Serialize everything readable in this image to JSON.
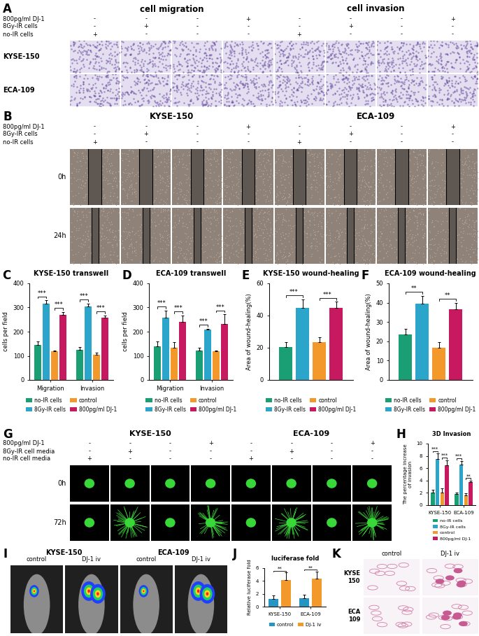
{
  "image_panels": [
    {
      "label": "A",
      "headers": [
        "cell migration",
        "cell invasion"
      ],
      "conditions": [
        {
          "name": "800pg/ml DJ-1",
          "signs": [
            "-",
            "-",
            "-",
            "+",
            "-",
            "-",
            "-",
            "+"
          ]
        },
        {
          "name": "8Gy-IR cells",
          "signs": [
            "-",
            "+",
            "-",
            "-",
            "-",
            "+",
            "-",
            "-"
          ]
        },
        {
          "name": "no-IR cells",
          "signs": [
            "+",
            "-",
            "-",
            "-",
            "+",
            "-",
            "-",
            "-"
          ]
        }
      ],
      "rows": [
        "KYSE-150",
        "ECA-109"
      ]
    },
    {
      "label": "B",
      "headers": [
        "KYSE-150",
        "ECA-109"
      ],
      "conditions": [
        {
          "name": "800pg/ml DJ-1",
          "signs": [
            "-",
            "-",
            "-",
            "+",
            "-",
            "-",
            "-",
            "+"
          ]
        },
        {
          "name": "8Gy-IR cells",
          "signs": [
            "-",
            "+",
            "-",
            "-",
            "-",
            "+",
            "-",
            "-"
          ]
        },
        {
          "name": "no-IR cells",
          "signs": [
            "+",
            "-",
            "-",
            "-",
            "+",
            "-",
            "-",
            "-"
          ]
        }
      ],
      "rows": [
        "0h",
        "24h"
      ]
    },
    {
      "label": "G",
      "headers": [
        "KYSE-150",
        "ECA-109"
      ],
      "conditions": [
        {
          "name": "800pg/ml DJ-1",
          "signs": [
            "-",
            "-",
            "-",
            "+",
            "-",
            "-",
            "-",
            "+"
          ]
        },
        {
          "name": "8Gy-IR cell media",
          "signs": [
            "-",
            "+",
            "-",
            "-",
            "-",
            "+",
            "-",
            "-"
          ]
        },
        {
          "name": "no-IR cell media",
          "signs": [
            "+",
            "-",
            "-",
            "-",
            "+",
            "-",
            "-",
            "-"
          ]
        }
      ],
      "rows": [
        "0h",
        "72h"
      ]
    },
    {
      "label": "I",
      "headers": [
        "KYSE-150",
        "ECA-109"
      ],
      "columns": [
        "control",
        "DJ-1 iv",
        "control",
        "DJ-1 iv"
      ]
    },
    {
      "label": "K",
      "columns": [
        "control",
        "DJ-1 iv"
      ],
      "rows": [
        "KYSE\n150",
        "ECA\n109"
      ]
    }
  ],
  "chart_data": [
    {
      "type": "bar",
      "label": "C",
      "title": "KYSE-150 transwell",
      "y_label": "cells per field",
      "categories": [
        "Migration",
        "Invasion"
      ],
      "series": [
        {
          "name": "no-IR cells",
          "color": "#1a9e73",
          "values": [
            145,
            125
          ],
          "errors": [
            15,
            12
          ]
        },
        {
          "name": "8Gy-IR cells",
          "color": "#2ba5c9",
          "values": [
            315,
            305
          ],
          "errors": [
            15,
            12
          ]
        },
        {
          "name": "control",
          "color": "#f3982a",
          "values": [
            118,
            105
          ],
          "errors": [
            4,
            8
          ]
        },
        {
          "name": "800pg/ml DJ-1",
          "color": "#c7195f",
          "values": [
            270,
            258
          ],
          "errors": [
            12,
            10
          ]
        }
      ],
      "ylim": [
        0,
        400
      ],
      "yticks": [
        0,
        100,
        200,
        300,
        400
      ],
      "legend": "below",
      "significance": [
        {
          "category": 0,
          "series": [
            0,
            1
          ],
          "text": "***"
        },
        {
          "category": 0,
          "series": [
            2,
            3
          ],
          "text": "***"
        },
        {
          "category": 1,
          "series": [
            0,
            1
          ],
          "text": "***"
        },
        {
          "category": 1,
          "series": [
            2,
            3
          ],
          "text": "***"
        }
      ]
    },
    {
      "type": "bar",
      "label": "D",
      "title": "ECA-109 transwell",
      "y_label": "cells per field",
      "categories": [
        "Migration",
        "Invasion"
      ],
      "series": [
        {
          "name": "no-IR cells",
          "color": "#1a9e73",
          "values": [
            138,
            122
          ],
          "errors": [
            20,
            10
          ]
        },
        {
          "name": "8Gy-IR cells",
          "color": "#2ba5c9",
          "values": [
            258,
            208
          ],
          "errors": [
            30,
            5
          ]
        },
        {
          "name": "control",
          "color": "#f3982a",
          "values": [
            132,
            118
          ],
          "errors": [
            25,
            5
          ]
        },
        {
          "name": "800pg/ml DJ-1",
          "color": "#c7195f",
          "values": [
            242,
            232
          ],
          "errors": [
            25,
            40
          ]
        }
      ],
      "ylim": [
        0,
        400
      ],
      "yticks": [
        0,
        100,
        200,
        300,
        400
      ],
      "legend": "below",
      "significance": [
        {
          "category": 0,
          "series": [
            0,
            1
          ],
          "text": "***"
        },
        {
          "category": 0,
          "series": [
            2,
            3
          ],
          "text": "***"
        },
        {
          "category": 1,
          "series": [
            0,
            1
          ],
          "text": "***"
        },
        {
          "category": 1,
          "series": [
            2,
            3
          ],
          "text": "***"
        }
      ]
    },
    {
      "type": "bar",
      "label": "E",
      "title": "KYSE-150 wound-healing",
      "y_label": "Area of wound-healing(%)",
      "categories": [
        null
      ],
      "series": [
        {
          "name": "no-IR cells",
          "color": "#1a9e73",
          "values": [
            20.5
          ],
          "errors": [
            3
          ]
        },
        {
          "name": "8Gy-IR cells",
          "color": "#2ba5c9",
          "values": [
            45
          ],
          "errors": [
            5
          ]
        },
        {
          "name": "control",
          "color": "#f3982a",
          "values": [
            23.5
          ],
          "errors": [
            3
          ]
        },
        {
          "name": "800pg/ml DJ-1",
          "color": "#c7195f",
          "values": [
            45
          ],
          "errors": [
            3.5
          ]
        }
      ],
      "ylim": [
        0,
        60
      ],
      "yticks": [
        0,
        20,
        40,
        60
      ],
      "legend": "below",
      "significance": [
        {
          "category": 0,
          "series": [
            0,
            1
          ],
          "text": "***"
        },
        {
          "category": 0,
          "series": [
            2,
            3
          ],
          "text": "***"
        }
      ]
    },
    {
      "type": "bar",
      "label": "F",
      "title": "ECA-109 wound-healing",
      "y_label": "Area of wound-healing(%)",
      "categories": [
        null
      ],
      "series": [
        {
          "name": "no-IR cells",
          "color": "#1a9e73",
          "values": [
            23.5
          ],
          "errors": [
            3
          ]
        },
        {
          "name": "8Gy-IR cells",
          "color": "#2ba5c9",
          "values": [
            39.5
          ],
          "errors": [
            4
          ]
        },
        {
          "name": "control",
          "color": "#f3982a",
          "values": [
            16.5
          ],
          "errors": [
            3
          ]
        },
        {
          "name": "800pg/ml DJ-1",
          "color": "#c7195f",
          "values": [
            36.5
          ],
          "errors": [
            3.5
          ]
        }
      ],
      "ylim": [
        0,
        50
      ],
      "yticks": [
        0,
        10,
        20,
        30,
        40,
        50
      ],
      "legend": "below",
      "significance": [
        {
          "category": 0,
          "series": [
            0,
            1
          ],
          "text": "**"
        },
        {
          "category": 0,
          "series": [
            2,
            3
          ],
          "text": "**"
        }
      ]
    },
    {
      "type": "bar",
      "label": "H",
      "title": "3D Invasion",
      "y_label": "The percentage increase\nof invasion",
      "categories": [
        "KYSE-150",
        "ECA-109"
      ],
      "series": [
        {
          "name": "no-IR cells",
          "color": "#1a9e73",
          "values": [
            2.0,
            1.8
          ],
          "errors": [
            0.5,
            0.3
          ]
        },
        {
          "name": "8Gy-IR cells",
          "color": "#2ba5c9",
          "values": [
            7.5,
            6.6
          ],
          "errors": [
            0.9,
            0.6
          ]
        },
        {
          "name": "control",
          "color": "#f3982a",
          "values": [
            2.1,
            1.6
          ],
          "errors": [
            0.6,
            0.3
          ]
        },
        {
          "name": "800pg/ml DJ-1",
          "color": "#c7195f",
          "values": [
            6.5,
            3.7
          ],
          "errors": [
            0.8,
            0.3
          ]
        }
      ],
      "ylim": [
        0,
        10
      ],
      "yticks": [
        0,
        2,
        4,
        6,
        8,
        10
      ],
      "legend": "below",
      "significance": [
        {
          "category": 0,
          "series": [
            0,
            1
          ],
          "text": "***"
        },
        {
          "category": 0,
          "series": [
            2,
            3
          ],
          "text": "***"
        },
        {
          "category": 1,
          "series": [
            0,
            1
          ],
          "text": "***"
        },
        {
          "category": 1,
          "series": [
            2,
            3
          ],
          "text": "**"
        }
      ]
    },
    {
      "type": "bar",
      "label": "J",
      "title": "luciferase fold",
      "y_label": "Relative luciferase fold",
      "categories": [
        "KYSE-150",
        "ECA-109"
      ],
      "series": [
        {
          "name": "control",
          "color": "#2596c4",
          "values": [
            1.2,
            1.35
          ],
          "errors": [
            0.5,
            0.5
          ]
        },
        {
          "name": "DJ-1 iv",
          "color": "#f3982a",
          "values": [
            4.1,
            4.4
          ],
          "errors": [
            1.2,
            1.1
          ]
        }
      ],
      "ylim": [
        0,
        6
      ],
      "yticks": [
        0,
        2,
        4,
        6
      ],
      "legend": "below",
      "significance": [
        {
          "category": 0,
          "series": [
            0,
            1
          ],
          "text": "**"
        },
        {
          "category": 1,
          "series": [
            0,
            1
          ],
          "text": "**"
        }
      ]
    }
  ]
}
